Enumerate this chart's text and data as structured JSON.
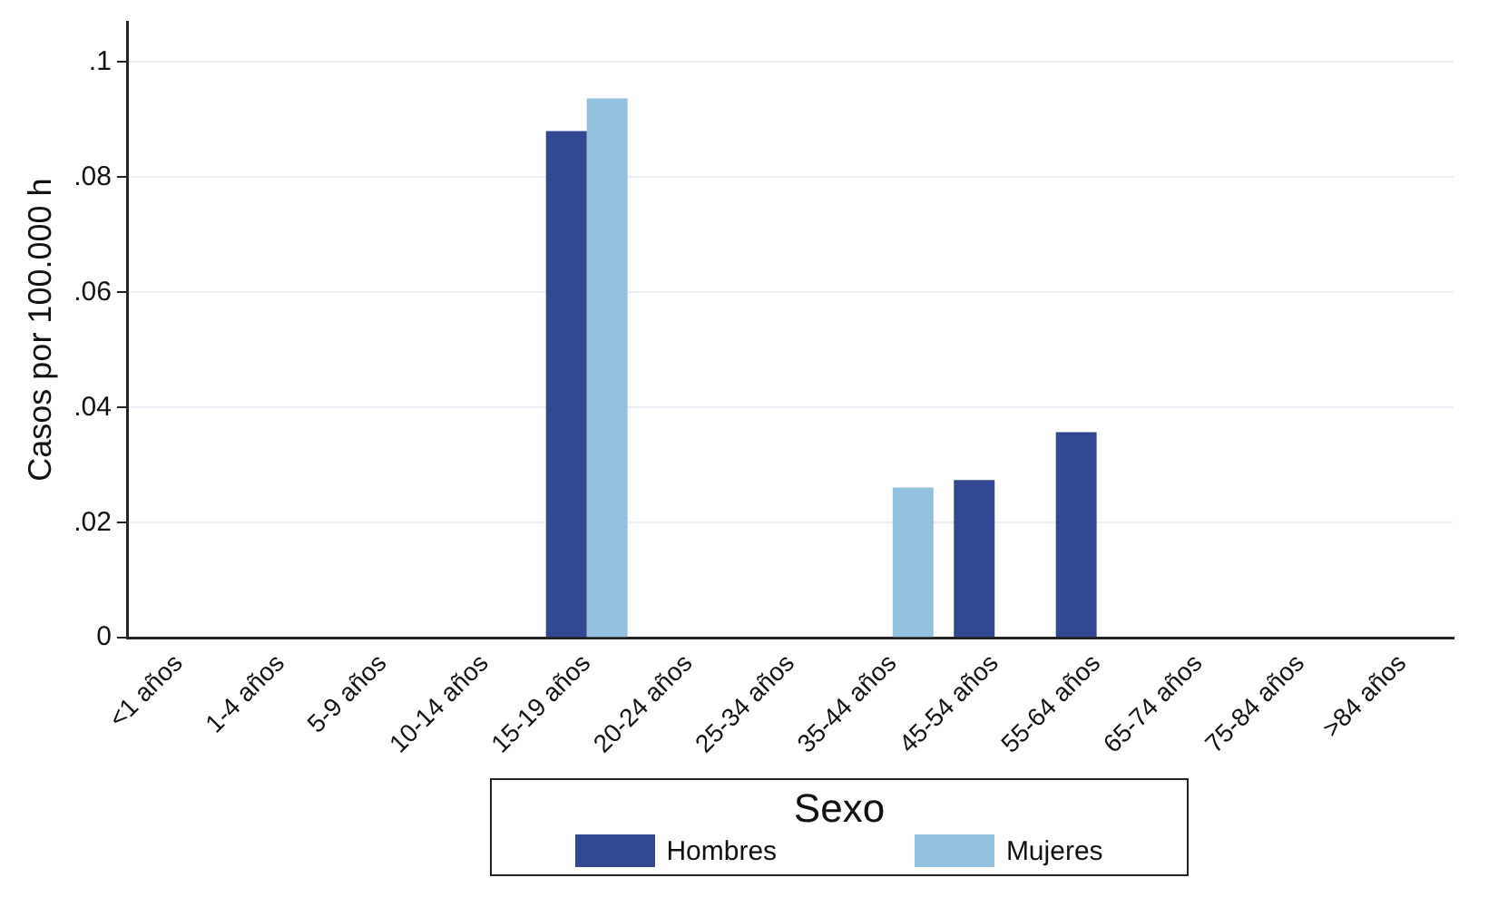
{
  "chart_data": {
    "type": "bar",
    "ylabel": "Casos por 100.000 h",
    "legend_title": "Sexo",
    "legend": "bottom",
    "grid": "y",
    "categories": [
      "<1 años",
      "1-4 años",
      "5-9 años",
      "10-14 años",
      "15-19 años",
      "20-24 años",
      "25-34 años",
      "35-44 años",
      "45-54 años",
      "55-64 años",
      "65-74 años",
      "75-84 años",
      ">84 años"
    ],
    "series": [
      {
        "name": "Hombres",
        "color": "#334893",
        "values": [
          0,
          0,
          0,
          0,
          0.088,
          0,
          0,
          0,
          0.0274,
          0.0357,
          0,
          0,
          0
        ]
      },
      {
        "name": "Mujeres",
        "color": "#95c1e1",
        "values": [
          0,
          0,
          0,
          0,
          0.0937,
          0,
          0,
          0.0261,
          0,
          0,
          0,
          0,
          0
        ]
      }
    ],
    "ylim": [
      0,
      0.107
    ],
    "yticks": [
      0,
      {
        "value": 0.02,
        "label": ".02"
      },
      {
        "value": 0.04,
        "label": ".04"
      },
      {
        "value": 0.06,
        "label": ".06"
      },
      {
        "value": 0.08,
        "label": ".08"
      },
      {
        "value": 0.1,
        "label": ".1"
      }
    ]
  }
}
